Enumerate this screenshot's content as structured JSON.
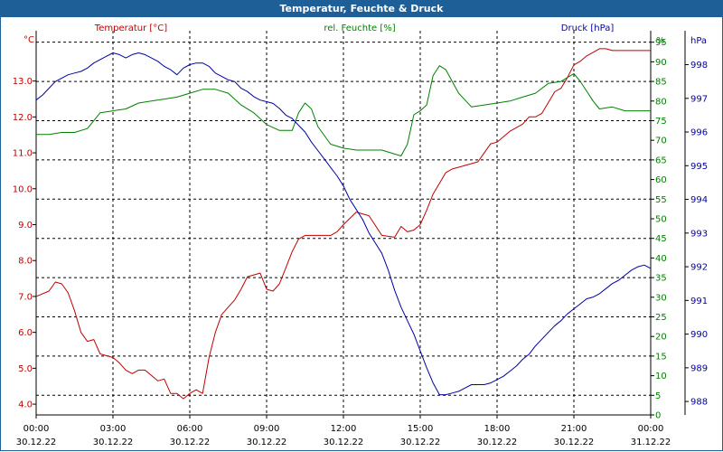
{
  "window": {
    "title": "Temperatur, Feuchte & Druck"
  },
  "colors": {
    "temperature": "#c00000",
    "humidity": "#008000",
    "pressure": "#0000a8",
    "axis": "#000000",
    "grid": "#000000",
    "titlebar": "#1f5f98"
  },
  "chart_data": {
    "type": "line",
    "title": "Temperatur, Feuchte & Druck",
    "x_labels": [
      {
        "hour": 0,
        "time": "00:00",
        "date": "30.12.22"
      },
      {
        "hour": 3,
        "time": "03:00",
        "date": "30.12.22"
      },
      {
        "hour": 6,
        "time": "06:00",
        "date": "30.12.22"
      },
      {
        "hour": 9,
        "time": "09:00",
        "date": "30.12.22"
      },
      {
        "hour": 12,
        "time": "12:00",
        "date": "30.12.22"
      },
      {
        "hour": 15,
        "time": "15:00",
        "date": "30.12.22"
      },
      {
        "hour": 18,
        "time": "18:00",
        "date": "30.12.22"
      },
      {
        "hour": 21,
        "time": "21:00",
        "date": "30.12.22"
      },
      {
        "hour": 24,
        "time": "00:00",
        "date": "31.12.22"
      }
    ],
    "xlim": [
      0,
      24
    ],
    "grid": true,
    "axes": {
      "temperature": {
        "label": "Temperatur [°C]",
        "unit": "°C",
        "ylim": [
          3.7,
          14.3
        ],
        "ticks": [
          4.0,
          5.0,
          6.0,
          7.0,
          8.0,
          9.0,
          10.0,
          11.0,
          12.0,
          13.0
        ],
        "tick_labels": [
          "4.0",
          "5.0",
          "6.0",
          "7.0",
          "8.0",
          "9.0",
          "10.0",
          "11.0",
          "12.0",
          "13.0"
        ]
      },
      "humidity": {
        "label": "rel. Feuchte [%]",
        "unit": "%",
        "ylim": [
          0,
          97
        ],
        "ticks": [
          0,
          5,
          10,
          15,
          20,
          25,
          30,
          35,
          40,
          45,
          50,
          55,
          60,
          65,
          70,
          75,
          80,
          85,
          90,
          95
        ],
        "tick_labels": [
          "0",
          "5",
          "10",
          "15",
          "20",
          "25",
          "30",
          "35",
          "40",
          "45",
          "50",
          "55",
          "60",
          "65",
          "70",
          "75",
          "80",
          "85",
          "90",
          "95"
        ]
      },
      "pressure": {
        "label": "Druck [hPa]",
        "unit": "hPa",
        "ylim": [
          987.6,
          998.9
        ],
        "ticks": [
          988,
          989,
          990,
          991,
          992,
          993,
          994,
          995,
          996,
          997,
          998
        ],
        "tick_labels": [
          "988",
          "989",
          "990",
          "991",
          "992",
          "993",
          "994",
          "995",
          "996",
          "997",
          "998"
        ]
      }
    },
    "series": [
      {
        "name": "Temperatur [°C]",
        "axis": "temperature",
        "x": [
          0,
          0.5,
          0.75,
          1,
          1.25,
          1.5,
          1.75,
          2,
          2.25,
          2.5,
          2.75,
          3,
          3.25,
          3.5,
          3.75,
          4,
          4.25,
          4.5,
          4.75,
          5,
          5.25,
          5.5,
          5.75,
          6,
          6.25,
          6.5,
          6.75,
          7,
          7.25,
          7.5,
          7.75,
          8,
          8.25,
          8.5,
          8.75,
          9,
          9.25,
          9.5,
          9.75,
          10,
          10.25,
          10.5,
          10.75,
          11,
          11.25,
          11.5,
          11.75,
          12,
          12.5,
          13,
          13.5,
          14,
          14.25,
          14.5,
          14.75,
          15,
          15.25,
          15.5,
          15.75,
          16,
          16.25,
          16.5,
          16.75,
          17,
          17.25,
          17.5,
          17.75,
          18,
          18.5,
          19,
          19.25,
          19.5,
          19.75,
          20,
          20.25,
          20.5,
          20.75,
          21,
          21.25,
          21.5,
          21.75,
          22,
          22.25,
          22.5,
          22.75,
          23,
          23.25,
          23.5,
          23.75,
          24
        ],
        "values": [
          7.0,
          7.15,
          7.4,
          7.35,
          7.1,
          6.6,
          6.0,
          5.75,
          5.8,
          5.4,
          5.35,
          5.3,
          5.15,
          4.95,
          4.85,
          4.95,
          4.95,
          4.8,
          4.65,
          4.7,
          4.3,
          4.3,
          4.15,
          4.3,
          4.4,
          4.3,
          5.3,
          6.0,
          6.5,
          6.7,
          6.9,
          7.2,
          7.55,
          7.6,
          7.65,
          7.2,
          7.15,
          7.35,
          7.8,
          8.25,
          8.6,
          8.7,
          8.7,
          8.7,
          8.7,
          8.7,
          8.8,
          9.0,
          9.35,
          9.25,
          8.7,
          8.65,
          8.95,
          8.8,
          8.85,
          9.0,
          9.4,
          9.85,
          10.15,
          10.45,
          10.55,
          10.6,
          10.65,
          10.7,
          10.75,
          11.0,
          11.25,
          11.3,
          11.6,
          11.8,
          12.0,
          12.0,
          12.1,
          12.4,
          12.7,
          12.8,
          13.1,
          13.45,
          13.55,
          13.7,
          13.8,
          13.9,
          13.9,
          13.85,
          13.85,
          13.85,
          13.85,
          13.85,
          13.85,
          13.85
        ]
      },
      {
        "name": "rel. Feuchte [%]",
        "axis": "humidity",
        "x": [
          0,
          0.5,
          1,
          1.5,
          2,
          2.5,
          3,
          3.5,
          4,
          4.5,
          5,
          5.5,
          6,
          6.5,
          7,
          7.5,
          8,
          8.5,
          9,
          9.5,
          10,
          10.25,
          10.5,
          10.75,
          11,
          11.5,
          12,
          12.5,
          13,
          13.5,
          14,
          14.25,
          14.5,
          14.75,
          15,
          15.25,
          15.5,
          15.75,
          16,
          16.5,
          17,
          17.5,
          18,
          18.5,
          19,
          19.5,
          20,
          20.5,
          21,
          21.25,
          21.5,
          21.75,
          22,
          22.5,
          23,
          23.25,
          23.5,
          23.75,
          24
        ],
        "values": [
          71.5,
          71.5,
          72,
          72,
          73,
          77,
          77.5,
          78,
          79.5,
          80,
          80.5,
          81,
          82,
          83,
          83,
          82,
          79,
          77,
          74,
          72.5,
          72.5,
          77,
          79.5,
          78,
          73.5,
          69,
          68,
          67.5,
          67.5,
          67.5,
          66.5,
          66,
          69,
          76.5,
          77.5,
          79,
          86.5,
          89,
          88,
          82,
          78.5,
          79,
          79.5,
          80,
          81,
          82,
          84.5,
          85,
          87,
          85,
          82.5,
          80,
          78,
          78.5,
          77.5,
          77.5,
          77.5,
          77.5,
          77.5
        ]
      },
      {
        "name": "Druck [hPa]",
        "axis": "pressure",
        "x": [
          0,
          0.25,
          0.5,
          0.75,
          1,
          1.25,
          1.5,
          1.75,
          2,
          2.25,
          2.5,
          2.75,
          3,
          3.25,
          3.5,
          3.75,
          4,
          4.25,
          4.5,
          4.75,
          5,
          5.25,
          5.5,
          5.75,
          6,
          6.25,
          6.5,
          6.75,
          7,
          7.25,
          7.5,
          7.75,
          8,
          8.25,
          8.5,
          8.75,
          9,
          9.25,
          9.5,
          9.75,
          10,
          10.25,
          10.5,
          10.75,
          11,
          11.25,
          11.5,
          11.75,
          12,
          12.25,
          12.5,
          12.75,
          13,
          13.25,
          13.5,
          13.75,
          14,
          14.25,
          14.5,
          14.75,
          15,
          15.25,
          15.5,
          15.75,
          16,
          16.25,
          16.5,
          16.75,
          17,
          17.25,
          17.5,
          17.75,
          18,
          18.25,
          18.5,
          18.75,
          19,
          19.25,
          19.5,
          19.75,
          20,
          20.25,
          20.5,
          20.75,
          21,
          21.25,
          21.5,
          21.75,
          22,
          22.25,
          22.5,
          22.75,
          23,
          23.25,
          23.5,
          23.75,
          24
        ],
        "values": [
          996.95,
          997.1,
          997.3,
          997.5,
          997.6,
          997.7,
          997.75,
          997.8,
          997.9,
          998.05,
          998.15,
          998.25,
          998.35,
          998.3,
          998.2,
          998.3,
          998.35,
          998.3,
          998.2,
          998.1,
          997.95,
          997.85,
          997.7,
          997.9,
          998.0,
          998.05,
          998.05,
          997.95,
          997.75,
          997.65,
          997.55,
          997.5,
          997.3,
          997.2,
          997.05,
          996.95,
          996.9,
          996.85,
          996.7,
          996.5,
          996.4,
          996.2,
          996.0,
          995.7,
          995.45,
          995.2,
          994.95,
          994.7,
          994.4,
          994.0,
          993.7,
          993.4,
          993.0,
          992.7,
          992.4,
          991.9,
          991.3,
          990.8,
          990.4,
          990.0,
          989.5,
          989.0,
          988.55,
          988.2,
          988.2,
          988.25,
          988.3,
          988.4,
          988.5,
          988.5,
          988.5,
          988.55,
          988.65,
          988.75,
          988.9,
          989.05,
          989.25,
          989.4,
          989.65,
          989.85,
          990.05,
          990.25,
          990.4,
          990.6,
          990.75,
          990.9,
          991.05,
          991.1,
          991.2,
          991.35,
          991.5,
          991.6,
          991.75,
          991.9,
          992.0,
          992.05,
          991.95
        ]
      }
    ]
  }
}
